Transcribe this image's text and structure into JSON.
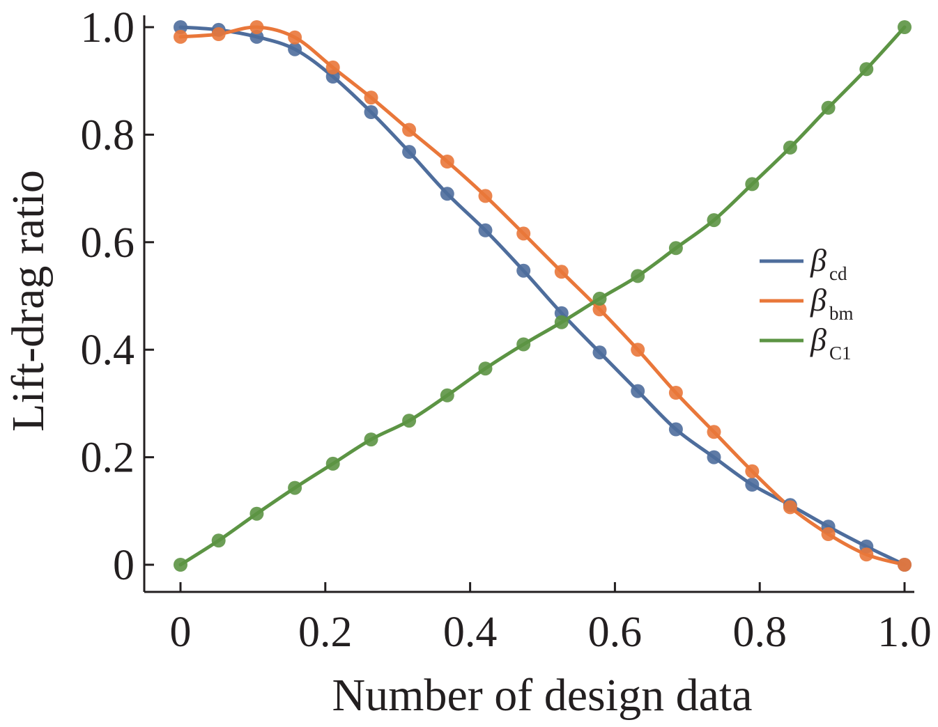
{
  "chart_data": {
    "type": "line",
    "title": "",
    "xlabel": "Number of design data",
    "ylabel": "Lift-drag ratio",
    "xlim": [
      0,
      1.0
    ],
    "ylim": [
      0,
      1.0
    ],
    "xticks": [
      "0",
      "0.2",
      "0.4",
      "0.6",
      "0.8",
      "1.0"
    ],
    "yticks": [
      "0",
      "0.2",
      "0.4",
      "0.6",
      "0.8",
      "1.0"
    ],
    "grid": false,
    "legend_position": "right",
    "x": [
      0,
      0.0526,
      0.1053,
      0.1579,
      0.2105,
      0.2632,
      0.3158,
      0.3684,
      0.4211,
      0.4737,
      0.5263,
      0.5789,
      0.6316,
      0.6842,
      0.7368,
      0.7895,
      0.8421,
      0.8947,
      0.9474,
      1.0
    ],
    "series": [
      {
        "name": "β",
        "subscript": "cd",
        "color": "#4e6d9c",
        "values": [
          1.0,
          0.995,
          0.982,
          0.959,
          0.908,
          0.842,
          0.768,
          0.69,
          0.622,
          0.547,
          0.468,
          0.395,
          0.323,
          0.252,
          0.2,
          0.149,
          0.111,
          0.071,
          0.034,
          0.0
        ]
      },
      {
        "name": "β",
        "subscript": "bm",
        "color": "#e9773a",
        "values": [
          0.982,
          0.987,
          1.0,
          0.981,
          0.925,
          0.869,
          0.809,
          0.75,
          0.686,
          0.616,
          0.545,
          0.475,
          0.4,
          0.32,
          0.247,
          0.174,
          0.107,
          0.057,
          0.019,
          0.0
        ]
      },
      {
        "name": "β",
        "subscript": "C1",
        "color": "#5c9444",
        "values": [
          0.0,
          0.045,
          0.095,
          0.143,
          0.188,
          0.233,
          0.268,
          0.315,
          0.365,
          0.41,
          0.451,
          0.495,
          0.537,
          0.589,
          0.641,
          0.708,
          0.776,
          0.85,
          0.922,
          1.0
        ]
      }
    ]
  }
}
